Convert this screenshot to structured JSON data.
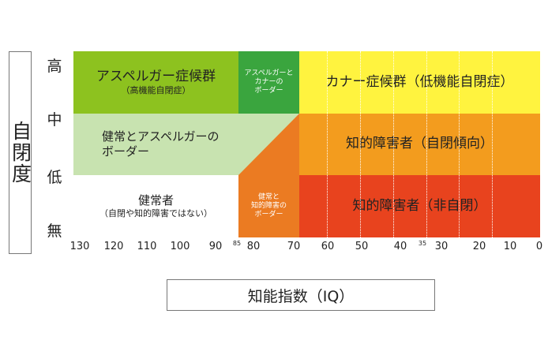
{
  "y_axis": {
    "title": "自閉度",
    "levels": [
      "高",
      "中",
      "低",
      "無"
    ]
  },
  "x_axis": {
    "title": "知能指数（IQ）",
    "ticks": [
      "130",
      "120",
      "110",
      "100",
      "90",
      "80",
      "70",
      "60",
      "50",
      "40",
      "30",
      "20",
      "10",
      "0"
    ],
    "minor_ticks": [
      "85",
      "35"
    ]
  },
  "regions": {
    "asperger": {
      "title": "アスペルガー症候群",
      "sub": "（高機能自閉症）"
    },
    "asperger_kanner_border": {
      "line1": "アスペルガーと",
      "line2": "カナーの",
      "line3": "ボーダー"
    },
    "kanner": {
      "title": "カナー症候群（低機能自閉症）"
    },
    "healthy_asperger_border": {
      "line1": "健常とアスペルガーの",
      "line2": "ボーダー"
    },
    "id_autistic_tendency": {
      "title": "知的障害者（自閉傾向）"
    },
    "healthy": {
      "title": "健常者",
      "sub": "（自閉や知的障害ではない）"
    },
    "healthy_id_border": {
      "line1": "健常と",
      "line2": "知的障害の",
      "line3": "ボーダー"
    },
    "id_non_autistic": {
      "title": "知的障害者（非自閉）"
    }
  },
  "colors": {
    "asperger": "#8dc21f",
    "asperger_kanner_border": "#3aa53e",
    "kanner": "#fff33f",
    "healthy_asperger_border": "#c8e3b0",
    "orange_border": "#eb7b22",
    "id_autistic_tendency": "#f39c1e",
    "healthy": "#ffffff",
    "id_non_autistic": "#e8431e"
  }
}
